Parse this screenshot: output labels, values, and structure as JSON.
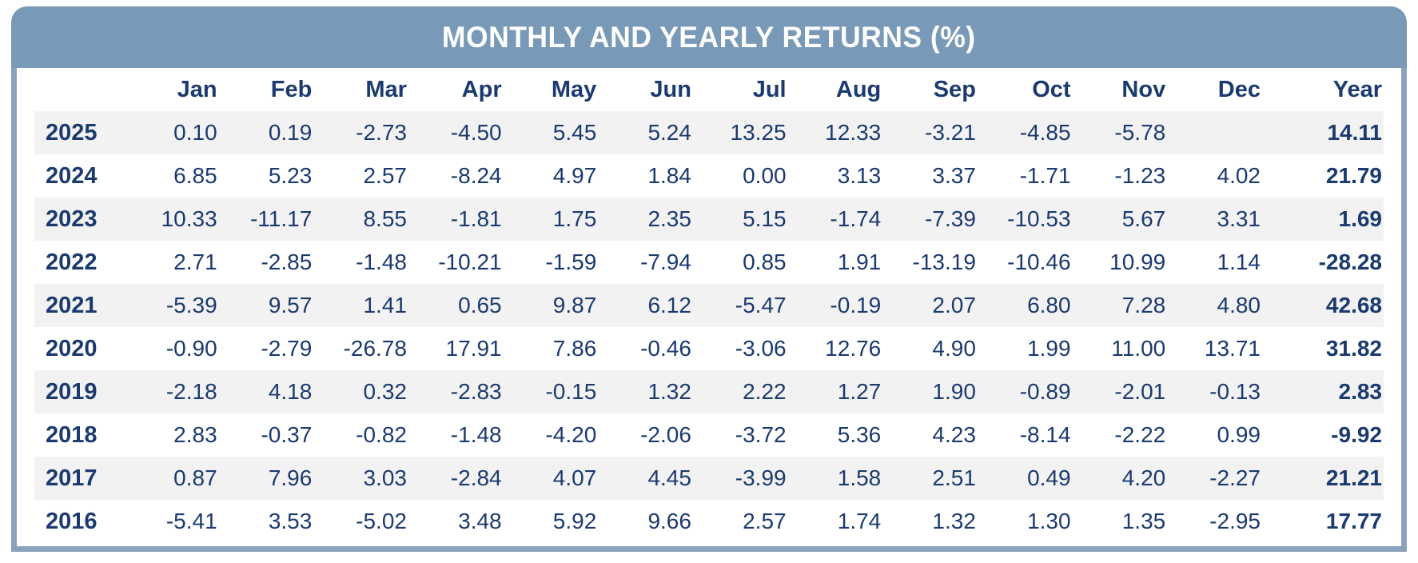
{
  "title": "MONTHLY AND YEARLY RETURNS (%)",
  "colors": {
    "header_bg": "#7899B7",
    "border": "#8AA3BC",
    "text": "#1B3A6F",
    "stripe": "#F2F2F2",
    "title_text": "#FFFFFF"
  },
  "chart_data": {
    "type": "table",
    "title": "MONTHLY AND YEARLY RETURNS (%)",
    "columns": [
      "Jan",
      "Feb",
      "Mar",
      "Apr",
      "May",
      "Jun",
      "Jul",
      "Aug",
      "Sep",
      "Oct",
      "Nov",
      "Dec",
      "Year"
    ],
    "rows": [
      {
        "year": "2025",
        "values": [
          "0.10",
          "0.19",
          "-2.73",
          "-4.50",
          "5.45",
          "5.24",
          "13.25",
          "12.33",
          "-3.21",
          "-4.85",
          "-5.78",
          "",
          "14.11"
        ]
      },
      {
        "year": "2024",
        "values": [
          "6.85",
          "5.23",
          "2.57",
          "-8.24",
          "4.97",
          "1.84",
          "0.00",
          "3.13",
          "3.37",
          "-1.71",
          "-1.23",
          "4.02",
          "21.79"
        ]
      },
      {
        "year": "2023",
        "values": [
          "10.33",
          "-11.17",
          "8.55",
          "-1.81",
          "1.75",
          "2.35",
          "5.15",
          "-1.74",
          "-7.39",
          "-10.53",
          "5.67",
          "3.31",
          "1.69"
        ]
      },
      {
        "year": "2022",
        "values": [
          "2.71",
          "-2.85",
          "-1.48",
          "-10.21",
          "-1.59",
          "-7.94",
          "0.85",
          "1.91",
          "-13.19",
          "-10.46",
          "10.99",
          "1.14",
          "-28.28"
        ]
      },
      {
        "year": "2021",
        "values": [
          "-5.39",
          "9.57",
          "1.41",
          "0.65",
          "9.87",
          "6.12",
          "-5.47",
          "-0.19",
          "2.07",
          "6.80",
          "7.28",
          "4.80",
          "42.68"
        ]
      },
      {
        "year": "2020",
        "values": [
          "-0.90",
          "-2.79",
          "-26.78",
          "17.91",
          "7.86",
          "-0.46",
          "-3.06",
          "12.76",
          "4.90",
          "1.99",
          "11.00",
          "13.71",
          "31.82"
        ]
      },
      {
        "year": "2019",
        "values": [
          "-2.18",
          "4.18",
          "0.32",
          "-2.83",
          "-0.15",
          "1.32",
          "2.22",
          "1.27",
          "1.90",
          "-0.89",
          "-2.01",
          "-0.13",
          "2.83"
        ]
      },
      {
        "year": "2018",
        "values": [
          "2.83",
          "-0.37",
          "-0.82",
          "-1.48",
          "-4.20",
          "-2.06",
          "-3.72",
          "5.36",
          "4.23",
          "-8.14",
          "-2.22",
          "0.99",
          "-9.92"
        ]
      },
      {
        "year": "2017",
        "values": [
          "0.87",
          "7.96",
          "3.03",
          "-2.84",
          "4.07",
          "4.45",
          "-3.99",
          "1.58",
          "2.51",
          "0.49",
          "4.20",
          "-2.27",
          "21.21"
        ]
      },
      {
        "year": "2016",
        "values": [
          "-5.41",
          "3.53",
          "-5.02",
          "3.48",
          "5.92",
          "9.66",
          "2.57",
          "1.74",
          "1.32",
          "1.30",
          "1.35",
          "-2.95",
          "17.77"
        ]
      }
    ]
  }
}
